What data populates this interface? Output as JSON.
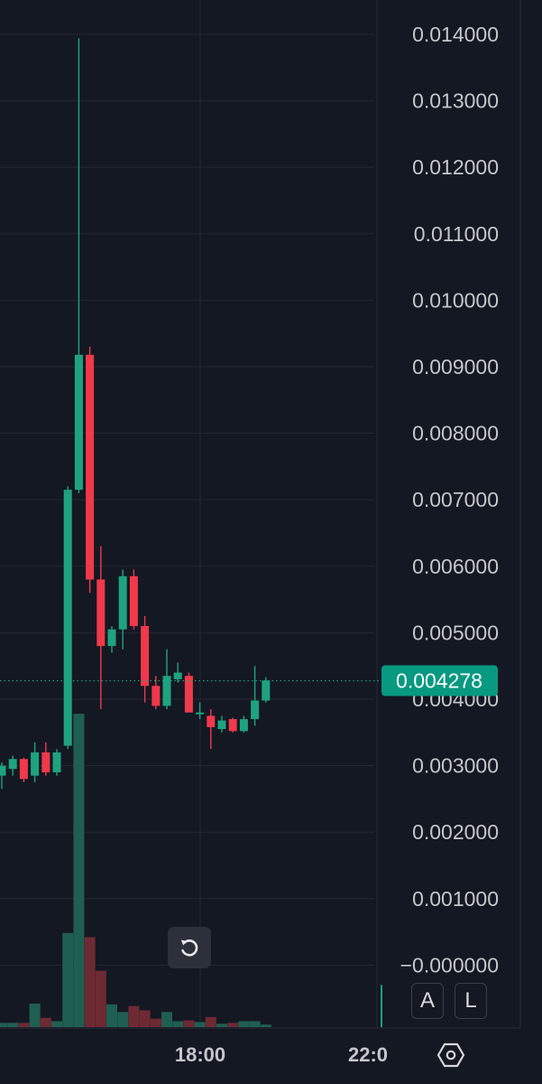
{
  "chart_data": {
    "type": "candlestick",
    "y_axis_labels": [
      "0.014000",
      "0.013000",
      "0.012000",
      "0.011000",
      "0.010000",
      "0.009000",
      "0.008000",
      "0.007000",
      "0.006000",
      "0.005000",
      "0.004000",
      "0.003000",
      "0.002000",
      "0.001000",
      "−0.000000"
    ],
    "y_range": [
      -0.0005,
      0.01443
    ],
    "x_tick_labels": [
      "18:00",
      "22:0"
    ],
    "last_price": "0.004278",
    "last_price_value": 0.004278,
    "colors": {
      "up": "#1fa37f",
      "down": "#f0394b",
      "up_volume": "#1f5f52",
      "down_volume": "#6e2a33",
      "background": "#141823",
      "grid": "#232733",
      "axis_text": "#c4c7cc",
      "price_label_bg": "#089981"
    },
    "candles": [
      {
        "o": 0.00285,
        "h": 0.00305,
        "l": 0.00265,
        "c": 0.003,
        "v": 0.05
      },
      {
        "o": 0.00295,
        "h": 0.00315,
        "l": 0.00285,
        "c": 0.0031,
        "v": 0.05
      },
      {
        "o": 0.0031,
        "h": 0.00312,
        "l": 0.00275,
        "c": 0.0028,
        "v": 0.05
      },
      {
        "o": 0.00285,
        "h": 0.00335,
        "l": 0.00275,
        "c": 0.0032,
        "v": 0.28
      },
      {
        "o": 0.0032,
        "h": 0.00335,
        "l": 0.00285,
        "c": 0.0029,
        "v": 0.11
      },
      {
        "o": 0.0029,
        "h": 0.00325,
        "l": 0.00285,
        "c": 0.0032,
        "v": 0.07
      },
      {
        "o": 0.0033,
        "h": 0.0072,
        "l": 0.00325,
        "c": 0.00715,
        "v": 1.12
      },
      {
        "o": 0.00715,
        "h": 0.01394,
        "l": 0.0071,
        "c": 0.00918,
        "v": 3.73
      },
      {
        "o": 0.00918,
        "h": 0.0093,
        "l": 0.0056,
        "c": 0.0058,
        "v": 1.07
      },
      {
        "o": 0.0058,
        "h": 0.0063,
        "l": 0.00385,
        "c": 0.0048,
        "v": 0.67
      },
      {
        "o": 0.0048,
        "h": 0.0051,
        "l": 0.0047,
        "c": 0.00505,
        "v": 0.27
      },
      {
        "o": 0.00505,
        "h": 0.00595,
        "l": 0.00475,
        "c": 0.00585,
        "v": 0.18
      },
      {
        "o": 0.00585,
        "h": 0.00595,
        "l": 0.00505,
        "c": 0.0051,
        "v": 0.25
      },
      {
        "o": 0.0051,
        "h": 0.00525,
        "l": 0.00395,
        "c": 0.0042,
        "v": 0.2
      },
      {
        "o": 0.0042,
        "h": 0.00435,
        "l": 0.00385,
        "c": 0.0039,
        "v": 0.1
      },
      {
        "o": 0.0039,
        "h": 0.00475,
        "l": 0.00385,
        "c": 0.00435,
        "v": 0.18
      },
      {
        "o": 0.0043,
        "h": 0.00455,
        "l": 0.00425,
        "c": 0.0044,
        "v": 0.07
      },
      {
        "o": 0.00435,
        "h": 0.0044,
        "l": 0.0038,
        "c": 0.0038,
        "v": 0.08
      },
      {
        "o": 0.0038,
        "h": 0.00395,
        "l": 0.0037,
        "c": 0.0038,
        "v": 0.06
      },
      {
        "o": 0.00375,
        "h": 0.00385,
        "l": 0.00325,
        "c": 0.00358,
        "v": 0.12
      },
      {
        "o": 0.00355,
        "h": 0.00375,
        "l": 0.0035,
        "c": 0.00368,
        "v": 0.04
      },
      {
        "o": 0.0037,
        "h": 0.00372,
        "l": 0.0035,
        "c": 0.00352,
        "v": 0.05
      },
      {
        "o": 0.00352,
        "h": 0.00375,
        "l": 0.0035,
        "c": 0.0037,
        "v": 0.07
      },
      {
        "o": 0.0037,
        "h": 0.0045,
        "l": 0.0036,
        "c": 0.00398,
        "v": 0.07
      },
      {
        "o": 0.00398,
        "h": 0.00433,
        "l": 0.00395,
        "c": 0.00428,
        "v": 0.03
      }
    ],
    "volume_preceding_bars": [
      0.08,
      0.08,
      0.08,
      0.08,
      0.08
    ],
    "volume_lastbar_right": 0.5
  },
  "controls": {
    "auto_label": "A",
    "log_label": "L",
    "reset_icon": "rotate-ccw-icon",
    "settings_icon": "hexagon-settings-icon"
  }
}
